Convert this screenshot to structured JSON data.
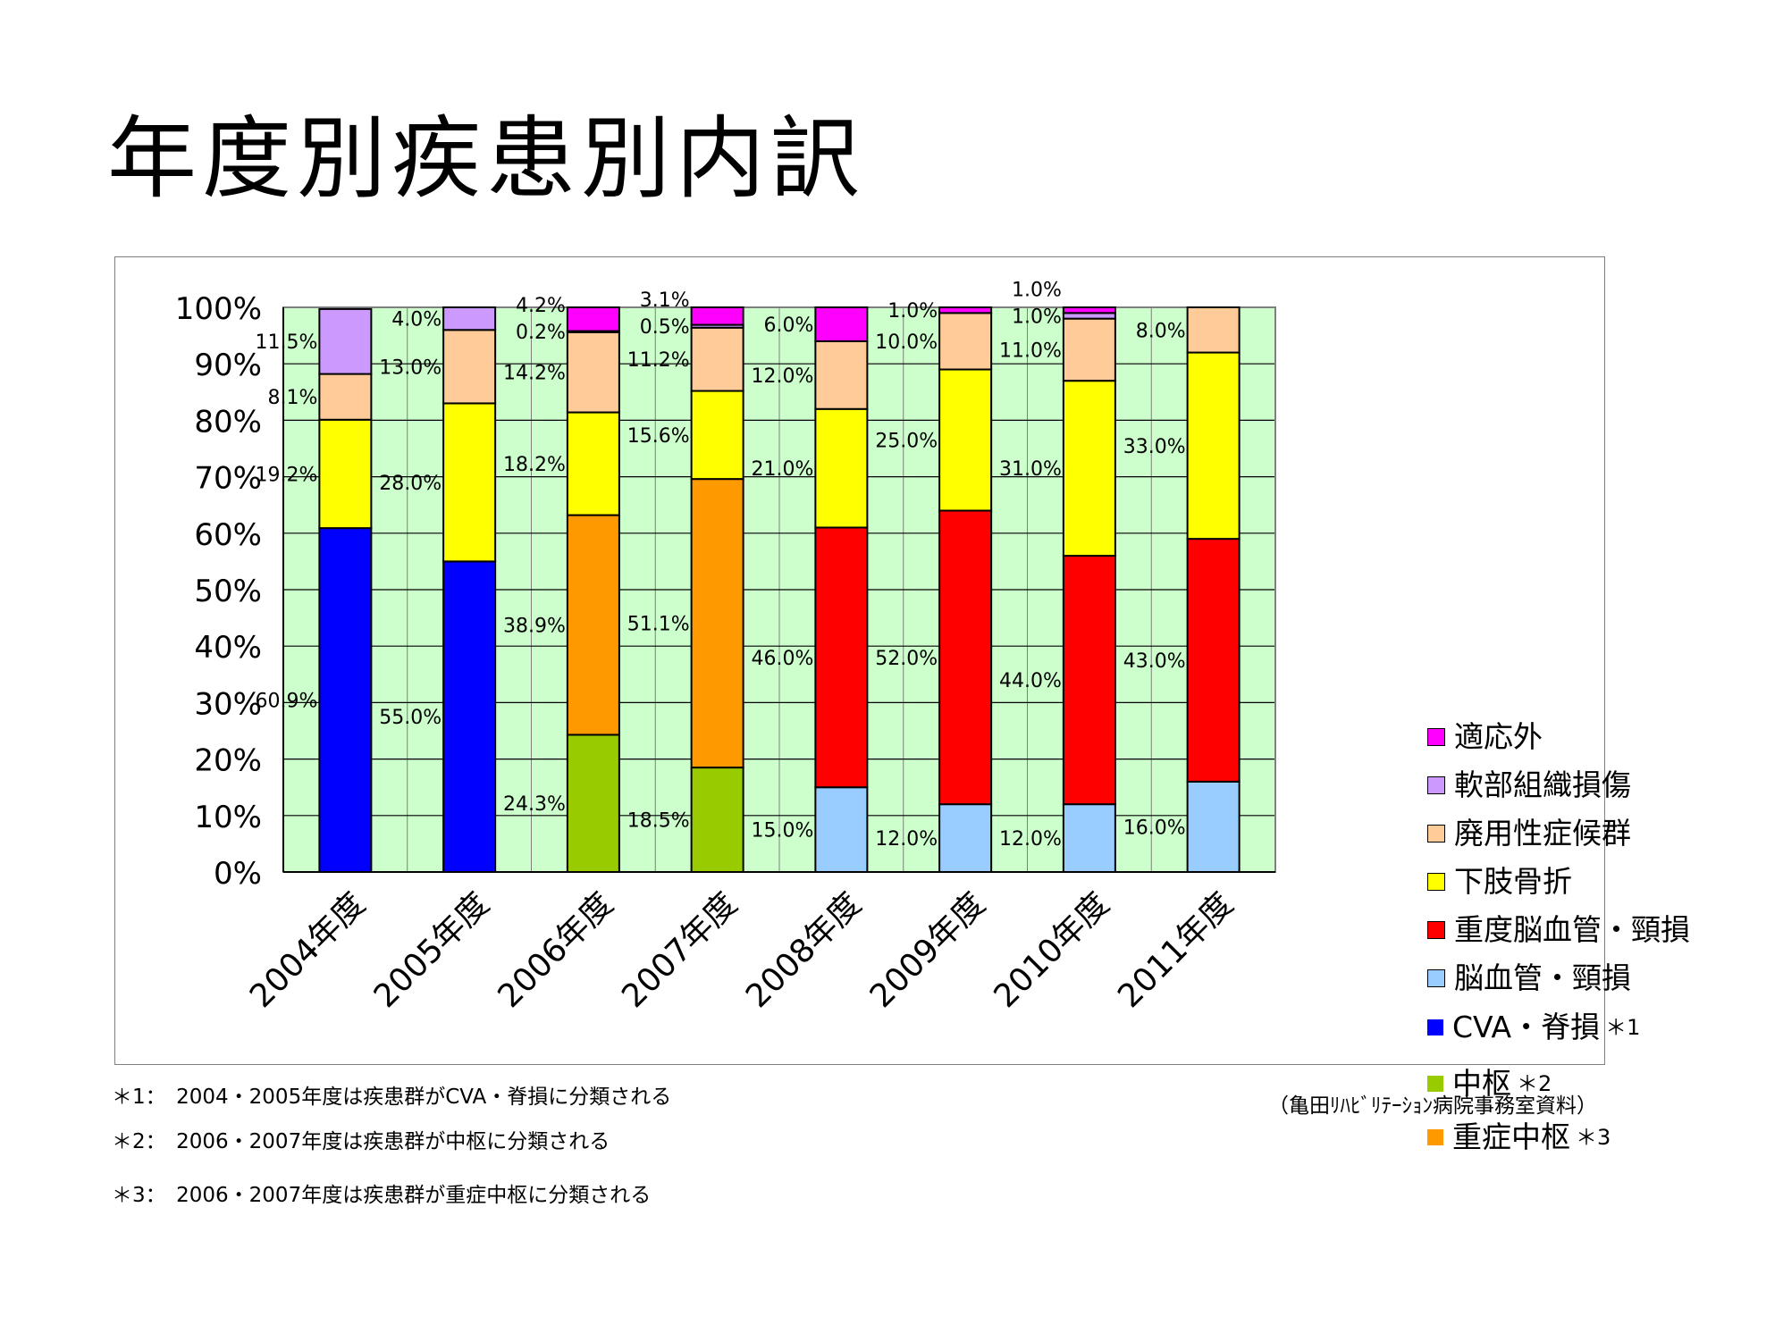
{
  "title": "年度別疾患別内訳",
  "chart_data": {
    "type": "bar",
    "stacked": true,
    "categories": [
      "2004年度",
      "2005年度",
      "2006年度",
      "2007年度",
      "2008年度",
      "2009年度",
      "2010年度",
      "2011年度"
    ],
    "ylim": [
      0,
      100
    ],
    "yticks": [
      "0%",
      "10%",
      "20%",
      "30%",
      "40%",
      "50%",
      "60%",
      "70%",
      "80%",
      "90%",
      "100%"
    ],
    "grid": true,
    "plot_background": "#ccffcc",
    "legend_position": "right",
    "series": [
      {
        "name": "CVA・脊損",
        "note": "＊1",
        "color": "#0000ff",
        "values": [
          60.9,
          55.0,
          0,
          0,
          0,
          0,
          0,
          0
        ],
        "labels": [
          "60.9%",
          "55.0%",
          "",
          "",
          "",
          "",
          "",
          ""
        ]
      },
      {
        "name": "中枢",
        "note": "＊2",
        "color": "#99cc00",
        "values": [
          0,
          0,
          24.3,
          18.5,
          0,
          0,
          0,
          0
        ],
        "labels": [
          "",
          "",
          "24.3%",
          "18.5%",
          "",
          "",
          "",
          ""
        ]
      },
      {
        "name": "重症中枢",
        "note": "＊3",
        "color": "#ff9900",
        "values": [
          0,
          0,
          38.9,
          51.1,
          0,
          0,
          0,
          0
        ],
        "labels": [
          "",
          "",
          "38.9%",
          "51.1%",
          "",
          "",
          "",
          ""
        ]
      },
      {
        "name": "脳血管・頸損",
        "color": "#99ccff",
        "values": [
          0,
          0,
          0,
          0,
          15.0,
          12.0,
          12.0,
          16.0
        ],
        "labels": [
          "",
          "",
          "",
          "",
          "15.0%",
          "12.0%",
          "12.0%",
          "16.0%"
        ]
      },
      {
        "name": "重度脳血管・頸損",
        "color": "#ff0000",
        "values": [
          0,
          0,
          0,
          0,
          46.0,
          52.0,
          44.0,
          43.0
        ],
        "labels": [
          "",
          "",
          "",
          "",
          "46.0%",
          "52.0%",
          "44.0%",
          "43.0%"
        ]
      },
      {
        "name": "下肢骨折",
        "color": "#ffff00",
        "values": [
          19.2,
          28.0,
          18.2,
          15.6,
          21.0,
          25.0,
          31.0,
          33.0
        ],
        "labels": [
          "19.2%",
          "28.0%",
          "18.2%",
          "15.6%",
          "21.0%",
          "25.0%",
          "31.0%",
          "33.0%"
        ]
      },
      {
        "name": "廃用性症候群",
        "color": "#ffcc99",
        "values": [
          8.1,
          13.0,
          14.2,
          11.2,
          12.0,
          10.0,
          11.0,
          8.0
        ],
        "labels": [
          "8.1%",
          "13.0%",
          "14.2%",
          "11.2%",
          "12.0%",
          "10.0%",
          "11.0%",
          "8.0%"
        ]
      },
      {
        "name": "軟部組織損傷",
        "color": "#cc99ff",
        "values": [
          11.5,
          4.0,
          0.2,
          0.5,
          0,
          0,
          1.0,
          0
        ],
        "labels": [
          "11.5%",
          "4.0%",
          "0.2%",
          "0.5%",
          "",
          "",
          "1.0%",
          ""
        ]
      },
      {
        "name": "適応外",
        "color": "#ff00ff",
        "values": [
          0,
          0,
          4.2,
          3.1,
          6.0,
          1.0,
          1.0,
          0
        ],
        "labels": [
          "",
          "",
          "4.2%",
          "3.1%",
          "6.0%",
          "1.0%",
          "1.0%",
          ""
        ]
      }
    ]
  },
  "legend": [
    {
      "name": "適応外",
      "note": "",
      "color": "#ff00ff",
      "border": true
    },
    {
      "name": "軟部組織損傷",
      "note": "",
      "color": "#cc99ff",
      "border": true
    },
    {
      "name": "廃用性症候群",
      "note": "",
      "color": "#ffcc99",
      "border": true
    },
    {
      "name": "下肢骨折",
      "note": "",
      "color": "#ffff00",
      "border": true
    },
    {
      "name": "重度脳血管・頸損",
      "note": "",
      "color": "#ff0000",
      "border": true
    },
    {
      "name": "脳血管・頸損",
      "note": "",
      "color": "#99ccff",
      "border": true
    },
    {
      "name": "CVA・脊損",
      "note": "＊1",
      "color": "#0000ff",
      "border": false
    },
    {
      "name": "中枢",
      "note": "＊2",
      "color": "#99cc00",
      "border": false
    },
    {
      "name": "重症中枢",
      "note": "＊3",
      "color": "#ff9900",
      "border": false
    }
  ],
  "footnotes": [
    "＊1：　2004・2005年度は疾患群がCVA・脊損に分類される",
    "＊2：　2006・2007年度は疾患群が中枢に分類される",
    "＊3：　2006・2007年度は疾患群が重症中枢に分類される"
  ],
  "source": "（亀田ﾘﾊﾋﾞﾘﾃｰｼｮﾝ病院事務室資料）"
}
